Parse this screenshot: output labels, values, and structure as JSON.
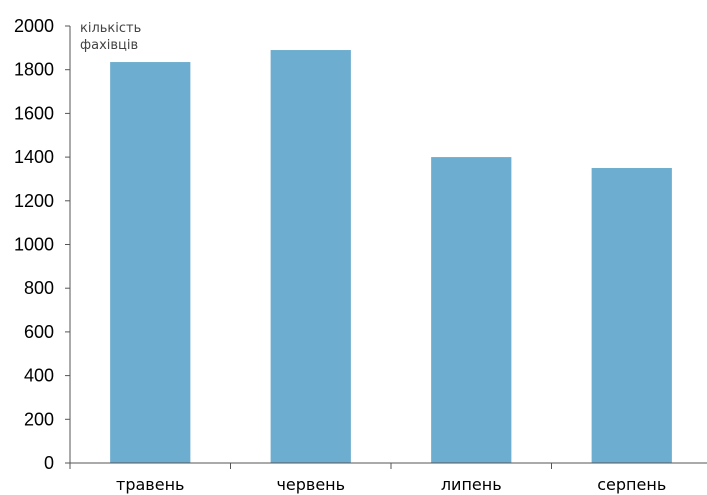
{
  "chart_data": {
    "type": "bar",
    "title": "",
    "ylabel_lines": [
      "кількість",
      "фахівців"
    ],
    "xlabel": "",
    "categories": [
      "травень",
      "червень",
      "липень",
      "серпень"
    ],
    "values": [
      1835,
      1890,
      1400,
      1350
    ],
    "ylim": [
      0,
      2000
    ],
    "yticks": [
      0,
      200,
      400,
      600,
      800,
      1000,
      1200,
      1400,
      1600,
      1800,
      2000
    ],
    "grid": false,
    "legend": "none",
    "bar_color": "#6dadcf",
    "axis_color": "#555555"
  }
}
